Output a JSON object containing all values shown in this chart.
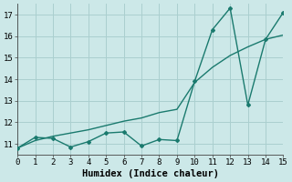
{
  "title": "",
  "xlabel": "Humidex (Indice chaleur)",
  "ylabel": "",
  "background_color": "#cce8e8",
  "grid_color": "#aacfcf",
  "line_color": "#1a7a6e",
  "x_data": [
    0,
    1,
    2,
    3,
    4,
    5,
    6,
    7,
    8,
    9,
    10,
    11,
    12,
    13,
    14,
    15
  ],
  "y_zigzag": [
    10.8,
    11.3,
    11.25,
    10.85,
    11.1,
    11.5,
    11.55,
    10.9,
    11.2,
    11.15,
    13.9,
    16.3,
    17.3,
    12.8,
    15.85,
    17.1
  ],
  "y_smooth": [
    10.8,
    11.15,
    11.35,
    11.5,
    11.65,
    11.85,
    12.05,
    12.2,
    12.45,
    12.6,
    13.85,
    14.55,
    15.1,
    15.5,
    15.85,
    16.05
  ],
  "xlim": [
    0,
    15
  ],
  "ylim": [
    10.5,
    17.5
  ],
  "yticks": [
    11,
    12,
    13,
    14,
    15,
    16,
    17
  ],
  "xticks": [
    0,
    1,
    2,
    3,
    4,
    5,
    6,
    7,
    8,
    9,
    10,
    11,
    12,
    13,
    14,
    15
  ],
  "font_family": "monospace",
  "tick_fontsize": 6.5,
  "xlabel_fontsize": 7.5
}
